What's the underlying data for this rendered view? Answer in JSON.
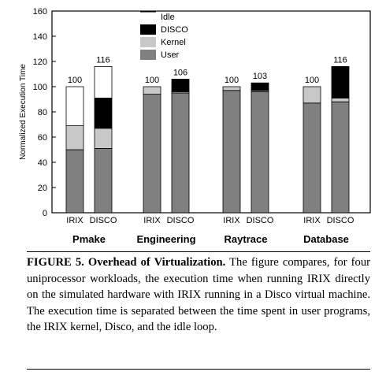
{
  "chart_data": {
    "type": "bar",
    "stacked": true,
    "title": "",
    "xlabel": "",
    "ylabel": "Normalized Execution Time",
    "ylim": [
      0,
      160
    ],
    "yticks": [
      0,
      20,
      40,
      60,
      80,
      100,
      120,
      140,
      160
    ],
    "grid": false,
    "legend_position": "top-center",
    "stack_order": [
      "User",
      "Kernel",
      "DISCO",
      "Idle"
    ],
    "legend_order": [
      "Idle",
      "DISCO",
      "Kernel",
      "User"
    ],
    "colors": {
      "User": "#808080",
      "Kernel": "#c8c8c8",
      "DISCO": "#000000",
      "Idle": "#ffffff"
    },
    "groups": [
      {
        "name": "Pmake",
        "bars": [
          {
            "label": "IRIX",
            "total": "100",
            "segments": {
              "User": 50,
              "Kernel": 19,
              "DISCO": 0,
              "Idle": 31
            }
          },
          {
            "label": "DISCO",
            "total": "116",
            "segments": {
              "User": 51,
              "Kernel": 16,
              "DISCO": 24,
              "Idle": 25
            }
          }
        ]
      },
      {
        "name": "Engineering",
        "bars": [
          {
            "label": "IRIX",
            "total": "100",
            "segments": {
              "User": 94,
              "Kernel": 6,
              "DISCO": 0,
              "Idle": 0
            }
          },
          {
            "label": "DISCO",
            "total": "106",
            "segments": {
              "User": 95,
              "Kernel": 1,
              "DISCO": 10,
              "Idle": 0
            }
          }
        ]
      },
      {
        "name": "Raytrace",
        "bars": [
          {
            "label": "IRIX",
            "total": "100",
            "segments": {
              "User": 97,
              "Kernel": 3,
              "DISCO": 0,
              "Idle": 0
            }
          },
          {
            "label": "DISCO",
            "total": "103",
            "segments": {
              "User": 96,
              "Kernel": 1,
              "DISCO": 6,
              "Idle": 0
            }
          }
        ]
      },
      {
        "name": "Database",
        "bars": [
          {
            "label": "IRIX",
            "total": "100",
            "segments": {
              "User": 87,
              "Kernel": 13,
              "DISCO": 0,
              "Idle": 0
            }
          },
          {
            "label": "DISCO",
            "total": "116",
            "segments": {
              "User": 88,
              "Kernel": 3,
              "DISCO": 25,
              "Idle": 0
            }
          }
        ]
      }
    ]
  },
  "caption": {
    "title": "FIGURE 5. Overhead of Virtualization.",
    "text": "The figure compares, for four uniprocessor workloads, the execution time when running IRIX directly on the simulated hardware with IRIX running in a Disco virtual machine. The execution time is separated between the time spent in user programs, the IRIX kernel, Disco, and the idle loop."
  }
}
